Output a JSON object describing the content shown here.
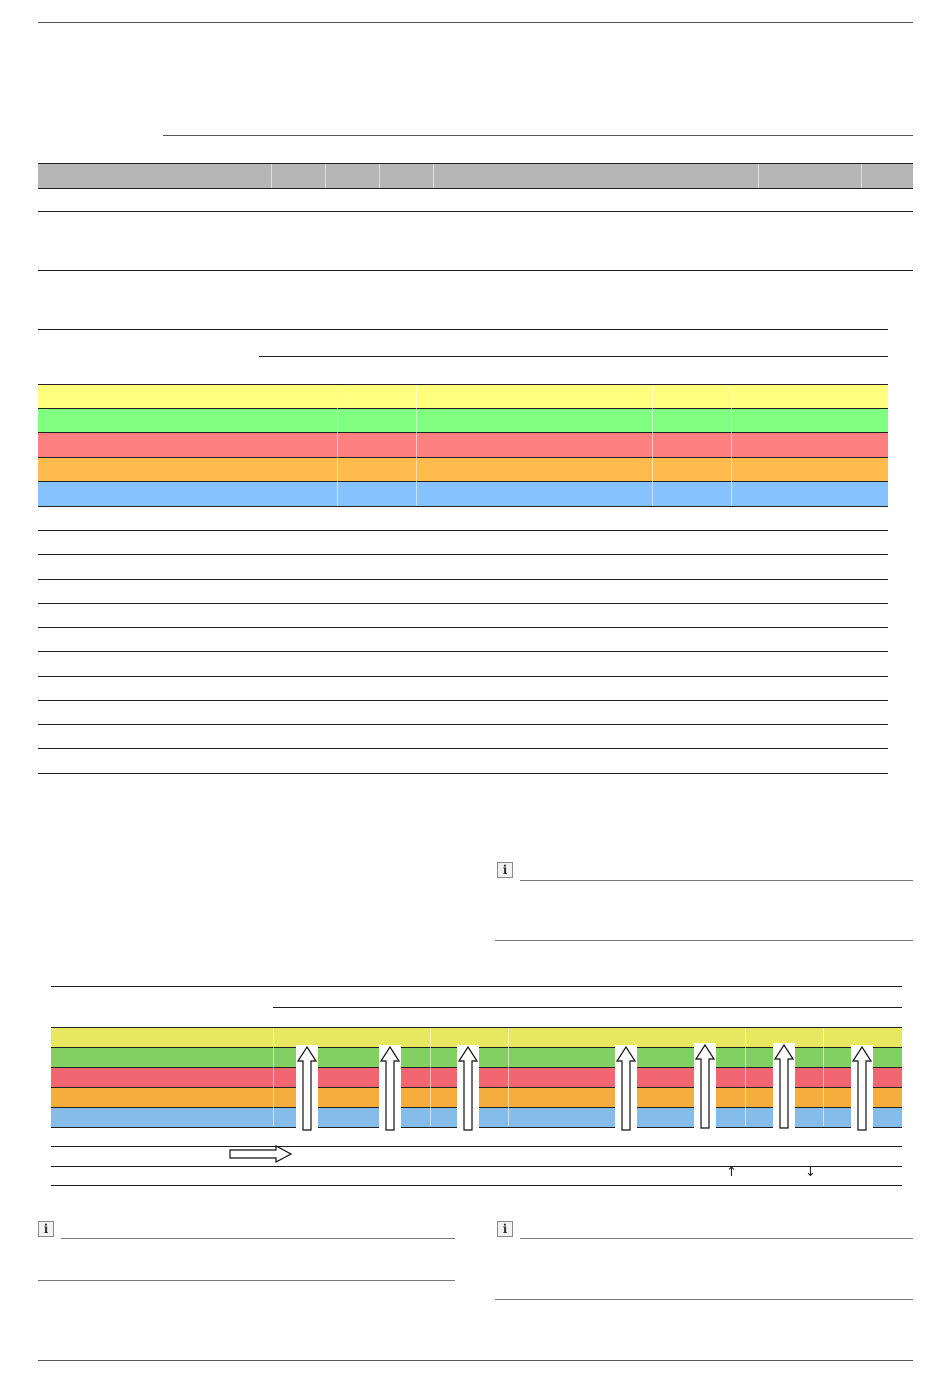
{
  "page": {
    "header_rule": "",
    "footer_rule": ""
  },
  "colors": {
    "header_gray": "#b5b5b5",
    "yellow": "#ffff80",
    "green": "#80ff80",
    "red": "#ff8080",
    "orange": "#ffbb4d",
    "blue": "#85c2ff",
    "yellow_dark": "#e8e860",
    "green_dark": "#82d062",
    "red_dark": "#f26672",
    "orange_dark": "#f5ad3e",
    "blue_dark": "#85bcea"
  },
  "icons": {
    "info": "info-icon",
    "up_arrow": "up-arrow-icon",
    "right_arrow": "right-arrow-icon",
    "small_up": "↑",
    "small_down": "↓",
    "info_glyph": "i"
  }
}
